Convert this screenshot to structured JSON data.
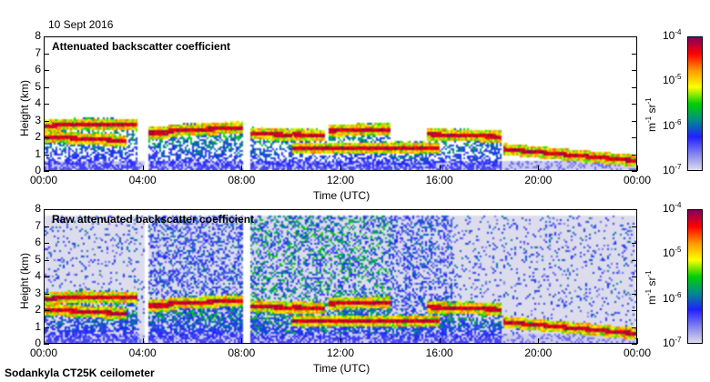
{
  "date": "10 Sept 2016",
  "footer": "Sodankyla CT25K ceilometer",
  "colors": {
    "stops": [
      "#dcdcec",
      "#8080f0",
      "#2020ff",
      "#008c8c",
      "#00d000",
      "#ffff00",
      "#ff9800",
      "#ff0000",
      "#800060"
    ]
  },
  "chart_data": [
    {
      "type": "heatmap",
      "title": "Attenuated backscatter coefficient",
      "xlabel": "Time (UTC)",
      "ylabel": "Height (km)",
      "xlim": [
        0,
        24
      ],
      "ylim": [
        0,
        8
      ],
      "xticks": [
        "00:00",
        "04:00",
        "08:00",
        "12:00",
        "16:00",
        "20:00",
        "00:00"
      ],
      "yticks": [
        "0",
        "1",
        "2",
        "3",
        "4",
        "5",
        "6",
        "7",
        "8"
      ],
      "colorbar": {
        "label_base": "m",
        "label_exp1": "-1",
        "label_mid": " sr",
        "label_exp2": "-1",
        "ticks": [
          {
            "base": "10",
            "exp": "-7"
          },
          {
            "base": "10",
            "exp": "-6"
          },
          {
            "base": "10",
            "exp": "-5"
          },
          {
            "base": "10",
            "exp": "-4"
          }
        ],
        "range": [
          1e-07,
          0.0001
        ],
        "scale": "log"
      },
      "noise": "low",
      "layers": [
        {
          "t": [
            0,
            1.2
          ],
          "h": [
            2.6,
            2.7
          ]
        },
        {
          "t": [
            1.2,
            3.7
          ],
          "h": [
            2.7,
            2.65
          ]
        },
        {
          "t": [
            0,
            3.3
          ],
          "h": [
            1.95,
            1.7
          ]
        },
        {
          "t": [
            4.2,
            5
          ],
          "h": [
            2.2,
            2.2
          ]
        },
        {
          "t": [
            5,
            8
          ],
          "h": [
            2.3,
            2.5
          ]
        },
        {
          "t": [
            8.3,
            10
          ],
          "h": [
            2.15,
            2.05
          ]
        },
        {
          "t": [
            10,
            11.3
          ],
          "h": [
            2.1,
            2.0
          ]
        },
        {
          "t": [
            11.5,
            14
          ],
          "h": [
            2.3,
            2.4
          ]
        },
        {
          "t": [
            10,
            16
          ],
          "h": [
            1.25,
            1.25
          ]
        },
        {
          "t": [
            15.5,
            18.5
          ],
          "h": [
            2.1,
            1.95
          ]
        },
        {
          "t": [
            18.6,
            24
          ],
          "h": [
            1.2,
            0.5
          ]
        }
      ]
    },
    {
      "type": "heatmap",
      "title": "Raw attenuated backscatter coefficient",
      "xlabel": "Time (UTC)",
      "ylabel": "Height (km)",
      "xlim": [
        0,
        24
      ],
      "ylim": [
        0,
        8
      ],
      "xticks": [
        "00:00",
        "04:00",
        "08:00",
        "12:00",
        "16:00",
        "20:00",
        "00:00"
      ],
      "yticks": [
        "0",
        "1",
        "2",
        "3",
        "4",
        "5",
        "6",
        "7",
        "8"
      ],
      "colorbar": {
        "label_base": "m",
        "label_exp1": "-1",
        "label_mid": " sr",
        "label_exp2": "-1",
        "ticks": [
          {
            "base": "10",
            "exp": "-7"
          },
          {
            "base": "10",
            "exp": "-6"
          },
          {
            "base": "10",
            "exp": "-5"
          },
          {
            "base": "10",
            "exp": "-4"
          }
        ],
        "range": [
          1e-07,
          0.0001
        ],
        "scale": "log"
      },
      "noise": "high",
      "layers": [
        {
          "t": [
            0,
            1.2
          ],
          "h": [
            2.6,
            2.7
          ]
        },
        {
          "t": [
            1.2,
            3.7
          ],
          "h": [
            2.7,
            2.65
          ]
        },
        {
          "t": [
            0,
            3.3
          ],
          "h": [
            1.95,
            1.7
          ]
        },
        {
          "t": [
            4.2,
            5
          ],
          "h": [
            2.2,
            2.2
          ]
        },
        {
          "t": [
            5,
            8
          ],
          "h": [
            2.3,
            2.5
          ]
        },
        {
          "t": [
            8.3,
            10
          ],
          "h": [
            2.15,
            2.05
          ]
        },
        {
          "t": [
            10,
            11.3
          ],
          "h": [
            2.1,
            2.0
          ]
        },
        {
          "t": [
            11.5,
            14
          ],
          "h": [
            2.3,
            2.4
          ]
        },
        {
          "t": [
            10,
            16
          ],
          "h": [
            1.25,
            1.25
          ]
        },
        {
          "t": [
            15.5,
            18.5
          ],
          "h": [
            2.1,
            1.95
          ]
        },
        {
          "t": [
            18.6,
            24
          ],
          "h": [
            1.2,
            0.5
          ]
        }
      ]
    }
  ]
}
